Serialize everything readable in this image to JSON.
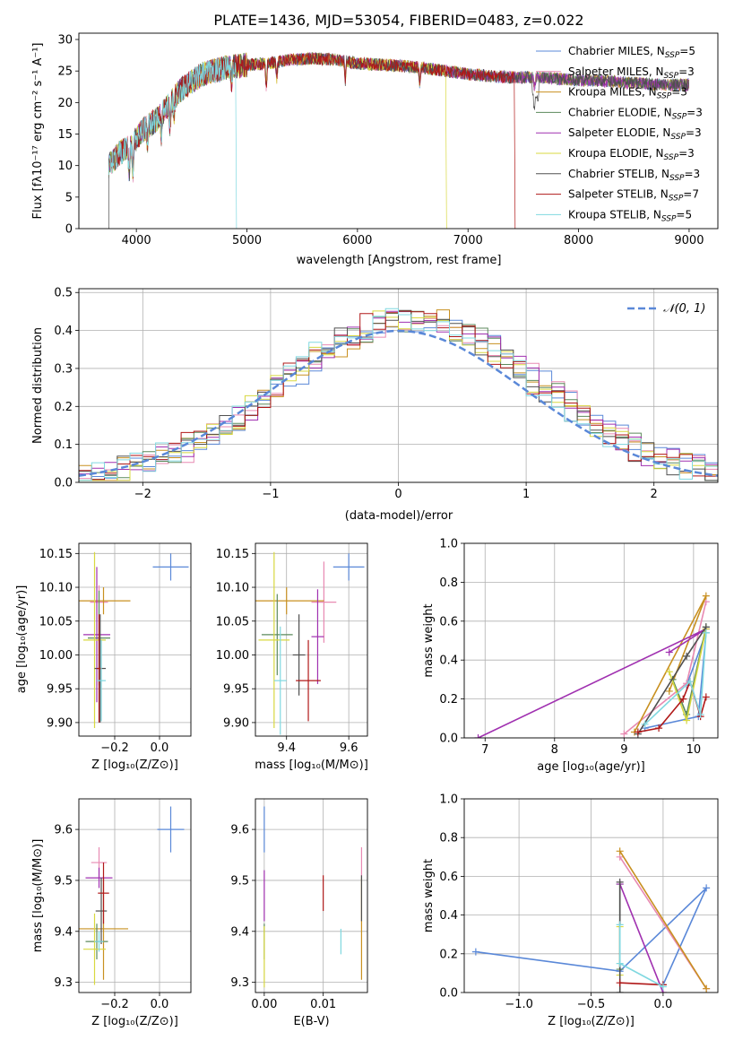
{
  "colors": {
    "chabrier_miles": "#5a88d8",
    "salpeter_miles": "#e88ab2",
    "kroupa_miles": "#c89020",
    "chabrier_elodie": "#5c8a5c",
    "salpeter_elodie": "#a030b0",
    "kroupa_elodie": "#d8d840",
    "chabrier_stelib": "#505050",
    "salpeter_stelib": "#b01818",
    "kroupa_stelib": "#80d8e0",
    "orange": "#e07020",
    "grid": "#b0b0b0"
  },
  "chart_data": [
    {
      "type": "line",
      "title": "PLATE=1436, MJD=53054, FIBERID=0483, z=0.022",
      "xlabel": "wavelength [Angstrom, rest frame]",
      "ylabel": "Flux [fλ10⁻¹⁷ erg cm⁻² s⁻¹ A⁻¹]",
      "xlim": [
        3480,
        9260
      ],
      "ylim": [
        0,
        31
      ],
      "xticks": [
        4000,
        5000,
        6000,
        7000,
        8000,
        9000
      ],
      "yticks": [
        0,
        5,
        10,
        15,
        20,
        25,
        30
      ],
      "legend_position": "top-right",
      "legend": [
        {
          "label": "Chabrier MILES, N",
          "sub": "SSP",
          "val": "=5"
        },
        {
          "label": "Salpeter MILES, N",
          "sub": "SSP",
          "val": "=3"
        },
        {
          "label": "Kroupa MILES, N",
          "sub": "SSP",
          "val": "=3"
        },
        {
          "label": "Chabrier ELODIE, N",
          "sub": "SSP",
          "val": "=3"
        },
        {
          "label": "Salpeter ELODIE, N",
          "sub": "SSP",
          "val": "=3"
        },
        {
          "label": "Kroupa ELODIE, N",
          "sub": "SSP",
          "val": "=3"
        },
        {
          "label": "Chabrier STELIB, N",
          "sub": "SSP",
          "val": "=3"
        },
        {
          "label": "Salpeter STELIB, N",
          "sub": "SSP",
          "val": "=7"
        },
        {
          "label": "Kroupa STELIB, N",
          "sub": "SSP",
          "val": "=5"
        }
      ],
      "continuum": [
        [
          3750,
          10
        ],
        [
          3850,
          12
        ],
        [
          3950,
          13
        ],
        [
          4050,
          15.5
        ],
        [
          4200,
          17.5
        ],
        [
          4400,
          22
        ],
        [
          4600,
          24.5
        ],
        [
          4800,
          25.5
        ],
        [
          5000,
          26
        ],
        [
          5200,
          26.2
        ],
        [
          5400,
          26.8
        ],
        [
          5600,
          27
        ],
        [
          5800,
          26.8
        ],
        [
          6000,
          26.2
        ],
        [
          6200,
          26
        ],
        [
          6400,
          25.8
        ],
        [
          6600,
          25.5
        ],
        [
          6800,
          25
        ],
        [
          7000,
          24.5
        ],
        [
          7200,
          24.2
        ],
        [
          7400,
          24
        ],
        [
          7600,
          24
        ],
        [
          7800,
          23.8
        ],
        [
          8000,
          23.5
        ],
        [
          8200,
          23.5
        ],
        [
          8400,
          23.2
        ],
        [
          8600,
          23
        ],
        [
          8800,
          22.8
        ],
        [
          9000,
          22.8
        ]
      ],
      "truncations": [
        {
          "model": "Kroupa ELODIE",
          "wavelength": 6800
        },
        {
          "model": "Salpeter STELIB",
          "wavelength": 7420
        },
        {
          "model": "Kroupa STELIB",
          "wavelength": 4900
        }
      ]
    },
    {
      "type": "histogram",
      "xlabel": "(data-model)/error",
      "ylabel": "Normed distribution",
      "xlim": [
        -2.5,
        2.5
      ],
      "ylim": [
        0,
        0.51
      ],
      "xticks": [
        -2,
        -1,
        0,
        1,
        2
      ],
      "yticks": [
        0.0,
        0.1,
        0.2,
        0.3,
        0.4,
        0.5
      ],
      "bin_width": 0.1,
      "gaussian": {
        "label": "𝒩(0, 1)",
        "mean": 0,
        "sigma": 1
      },
      "n_series": 9
    },
    {
      "type": "scatter",
      "xlabel": "Z [log₁₀(Z/Z⊙)]",
      "ylabel": "age  [log₁₀(age/yr)]",
      "xlim": [
        -0.36,
        0.14
      ],
      "ylim": [
        9.88,
        10.165
      ],
      "xticks": [
        -0.2,
        0.0
      ],
      "yticks": [
        9.9,
        9.95,
        10.0,
        10.05,
        10.1,
        10.15
      ],
      "points": [
        {
          "series": "Chabrier MILES",
          "x": 0.05,
          "y": 10.13,
          "xerr": 0.08,
          "yerr": 0.02
        },
        {
          "series": "Salpeter MILES",
          "x": -0.27,
          "y": 10.078,
          "xerr": 0.04,
          "yerr": 0.025
        },
        {
          "series": "Kroupa MILES",
          "x": -0.25,
          "y": 10.08,
          "xerr": 0.12,
          "yerr": 0.02
        },
        {
          "series": "Chabrier ELODIE",
          "x": -0.27,
          "y": 10.025,
          "xerr": 0.05,
          "yerr": 0.07
        },
        {
          "series": "Salpeter ELODIE",
          "x": -0.28,
          "y": 10.03,
          "xerr": 0.06,
          "yerr": 0.1
        },
        {
          "series": "Kroupa ELODIE",
          "x": -0.29,
          "y": 10.022,
          "xerr": 0.05,
          "yerr": 0.13
        },
        {
          "series": "Chabrier STELIB",
          "x": -0.265,
          "y": 9.98,
          "xerr": 0.025,
          "yerr": 0.08
        },
        {
          "series": "Salpeter STELIB",
          "x": -0.27,
          "y": 9.98,
          "xerr": 0.01,
          "yerr": 0.08
        },
        {
          "series": "Kroupa STELIB",
          "x": -0.26,
          "y": 9.962,
          "xerr": 0.02,
          "yerr": 0.06
        }
      ]
    },
    {
      "type": "scatter",
      "xlabel": "mass [log₁₀(M/M⊙)]",
      "ylabel": "",
      "xlim": [
        9.3,
        9.66
      ],
      "ylim": [
        9.88,
        10.165
      ],
      "xticks": [
        9.4,
        9.6
      ],
      "yticks": [
        9.9,
        9.95,
        10.0,
        10.05,
        10.1,
        10.15
      ],
      "points": [
        {
          "series": "Chabrier MILES",
          "x": 9.6,
          "y": 10.13,
          "xerr": 0.05,
          "yerr": 0.02
        },
        {
          "series": "Salpeter MILES",
          "x": 9.52,
          "y": 10.078,
          "xerr": 0.04,
          "yerr": 0.06
        },
        {
          "series": "Kroupa MILES",
          "x": 9.4,
          "y": 10.08,
          "xerr": 0.12,
          "yerr": 0.02
        },
        {
          "series": "Chabrier ELODIE",
          "x": 9.37,
          "y": 10.03,
          "xerr": 0.05,
          "yerr": 0.06
        },
        {
          "series": "Salpeter ELODIE",
          "x": 9.5,
          "y": 10.027,
          "xerr": 0.02,
          "yerr": 0.07
        },
        {
          "series": "Kroupa ELODIE",
          "x": 9.36,
          "y": 10.022,
          "xerr": 0.05,
          "yerr": 0.13
        },
        {
          "series": "Chabrier STELIB",
          "x": 9.44,
          "y": 10.0,
          "xerr": 0.02,
          "yerr": 0.06
        },
        {
          "series": "Salpeter STELIB",
          "x": 9.47,
          "y": 9.962,
          "xerr": 0.04,
          "yerr": 0.06
        },
        {
          "series": "Kroupa STELIB",
          "x": 9.38,
          "y": 9.962,
          "xerr": 0.02,
          "yerr": 0.08
        }
      ]
    },
    {
      "type": "line",
      "xlabel": "age  [log₁₀(age/yr)]",
      "ylabel": "mass weight",
      "xlim": [
        6.7,
        10.35
      ],
      "ylim": [
        0,
        1.0
      ],
      "xticks": [
        7,
        8,
        9,
        10
      ],
      "yticks": [
        0.0,
        0.2,
        0.4,
        0.6,
        0.8,
        1.0
      ],
      "series": [
        {
          "name": "Chabrier MILES",
          "points": [
            [
              9.3,
              0.05
            ],
            [
              10.07,
              0.11
            ],
            [
              10.18,
              0.54
            ],
            [
              9.9,
              0.27
            ]
          ]
        },
        {
          "name": "Salpeter MILES",
          "points": [
            [
              9.0,
              0.02
            ],
            [
              9.9,
              0.28
            ],
            [
              10.18,
              0.7
            ]
          ]
        },
        {
          "name": "Kroupa MILES",
          "points": [
            [
              9.65,
              0.24
            ],
            [
              10.18,
              0.73
            ],
            [
              9.15,
              0.03
            ]
          ]
        },
        {
          "name": "Chabrier ELODIE",
          "points": [
            [
              9.7,
              0.3
            ],
            [
              9.9,
              0.12
            ],
            [
              10.18,
              0.57
            ]
          ]
        },
        {
          "name": "Salpeter ELODIE",
          "points": [
            [
              6.9,
              0.0
            ],
            [
              10.18,
              0.56
            ],
            [
              9.65,
              0.44
            ]
          ]
        },
        {
          "name": "Kroupa ELODIE",
          "points": [
            [
              9.65,
              0.34
            ],
            [
              9.9,
              0.09
            ],
            [
              10.18,
              0.56
            ]
          ]
        },
        {
          "name": "Chabrier STELIB",
          "points": [
            [
              9.2,
              0.02
            ],
            [
              9.9,
              0.42
            ],
            [
              10.18,
              0.57
            ]
          ]
        },
        {
          "name": "Salpeter STELIB",
          "points": [
            [
              9.2,
              0.03
            ],
            [
              9.5,
              0.05
            ],
            [
              9.85,
              0.2
            ],
            [
              9.95,
              0.29
            ],
            [
              10.1,
              0.11
            ],
            [
              10.18,
              0.21
            ]
          ]
        },
        {
          "name": "Kroupa STELIB",
          "points": [
            [
              9.3,
              0.07
            ],
            [
              9.95,
              0.29
            ],
            [
              10.1,
              0.12
            ],
            [
              10.18,
              0.54
            ]
          ]
        }
      ]
    },
    {
      "type": "scatter",
      "xlabel": "Z [log₁₀(Z/Z⊙)]",
      "ylabel": "mass [log₁₀(M/M⊙)]",
      "xlim": [
        -0.36,
        0.14
      ],
      "ylim": [
        9.28,
        9.66
      ],
      "xticks": [
        -0.2,
        0.0
      ],
      "yticks": [
        9.3,
        9.4,
        9.5,
        9.6
      ],
      "points": [
        {
          "series": "Chabrier MILES",
          "x": 0.05,
          "y": 9.6,
          "xerr": 0.06,
          "yerr": 0.045
        },
        {
          "series": "Salpeter MILES",
          "x": -0.27,
          "y": 9.535,
          "xerr": 0.035,
          "yerr": 0.03
        },
        {
          "series": "Kroupa MILES",
          "x": -0.25,
          "y": 9.405,
          "xerr": 0.11,
          "yerr": 0.1
        },
        {
          "series": "Chabrier ELODIE",
          "x": -0.28,
          "y": 9.38,
          "xerr": 0.05,
          "yerr": 0.035
        },
        {
          "series": "Salpeter ELODIE",
          "x": -0.27,
          "y": 9.505,
          "xerr": 0.06,
          "yerr": 0.02
        },
        {
          "series": "Kroupa ELODIE",
          "x": -0.29,
          "y": 9.365,
          "xerr": 0.05,
          "yerr": 0.07
        },
        {
          "series": "Chabrier STELIB",
          "x": -0.26,
          "y": 9.44,
          "xerr": 0.025,
          "yerr": 0.065
        },
        {
          "series": "Salpeter STELIB",
          "x": -0.25,
          "y": 9.475,
          "xerr": 0.025,
          "yerr": 0.06
        },
        {
          "series": "Kroupa STELIB",
          "x": -0.27,
          "y": 9.38,
          "xerr": 0.02,
          "yerr": 0.02
        }
      ]
    },
    {
      "type": "scatter",
      "xlabel": "E(B-V)",
      "ylabel": "",
      "xlim": [
        -0.0015,
        0.0175
      ],
      "ylim": [
        9.28,
        9.66
      ],
      "xticks": [
        0.0,
        0.01
      ],
      "xtick_labels": [
        "0.00",
        "0.01"
      ],
      "yticks": [
        9.3,
        9.4,
        9.5,
        9.6
      ],
      "points": [
        {
          "series": "Chabrier MILES",
          "x": 0.0,
          "y": 9.6,
          "yerr": 0.045
        },
        {
          "series": "Salpeter MILES",
          "x": 0.0165,
          "y": 9.535,
          "yerr": 0.03
        },
        {
          "series": "Kroupa MILES",
          "x": 0.0165,
          "y": 9.405,
          "yerr": 0.1
        },
        {
          "series": "Chabrier ELODIE",
          "x": 0.0,
          "y": 9.38,
          "yerr": 0.035
        },
        {
          "series": "Salpeter ELODIE",
          "x": 0.0,
          "y": 9.47,
          "yerr": 0.05
        },
        {
          "series": "Kroupa ELODIE",
          "x": 0.0,
          "y": 9.35,
          "yerr": 0.06
        },
        {
          "series": "Chabrier STELIB",
          "x": 0.0165,
          "y": 9.465,
          "yerr": 0.045
        },
        {
          "series": "Salpeter STELIB",
          "x": 0.01,
          "y": 9.475,
          "yerr": 0.035
        },
        {
          "series": "Kroupa STELIB",
          "x": 0.013,
          "y": 9.38,
          "yerr": 0.025
        }
      ]
    },
    {
      "type": "line",
      "xlabel": "Z [log₁₀(Z/Z⊙)]",
      "ylabel": "mass weight",
      "xlim": [
        -1.38,
        0.38
      ],
      "ylim": [
        0,
        1.0
      ],
      "xticks": [
        -1.0,
        -0.5,
        0.0
      ],
      "yticks": [
        0.0,
        0.2,
        0.4,
        0.6,
        0.8,
        1.0
      ],
      "series": [
        {
          "name": "Chabrier MILES",
          "points": [
            [
              -1.3,
              0.21
            ],
            [
              -0.3,
              0.11
            ],
            [
              0.3,
              0.54
            ],
            [
              0.0,
              0.04
            ]
          ]
        },
        {
          "name": "Salpeter MILES",
          "points": [
            [
              -0.3,
              0.7
            ],
            [
              0.3,
              0.02
            ]
          ]
        },
        {
          "name": "Kroupa MILES",
          "points": [
            [
              -0.3,
              0.73
            ],
            [
              0.3,
              0.02
            ]
          ]
        },
        {
          "name": "Chabrier ELODIE",
          "points": [
            [
              -0.3,
              0.56
            ],
            [
              -0.3,
              0.12
            ]
          ]
        },
        {
          "name": "Salpeter ELODIE",
          "points": [
            [
              -0.3,
              0.56
            ],
            [
              0.0,
              0.0
            ]
          ]
        },
        {
          "name": "Kroupa ELODIE",
          "points": [
            [
              -0.3,
              0.34
            ],
            [
              -0.3,
              0.09
            ]
          ]
        },
        {
          "name": "Chabrier STELIB",
          "points": [
            [
              -0.3,
              0.57
            ],
            [
              -0.3,
              0.0
            ]
          ]
        },
        {
          "name": "Salpeter STELIB",
          "points": [
            [
              -0.3,
              0.05
            ],
            [
              0.0,
              0.04
            ]
          ]
        },
        {
          "name": "Kroupa STELIB",
          "points": [
            [
              -0.3,
              0.35
            ],
            [
              -0.3,
              0.15
            ],
            [
              0.0,
              0.03
            ]
          ]
        }
      ]
    }
  ]
}
